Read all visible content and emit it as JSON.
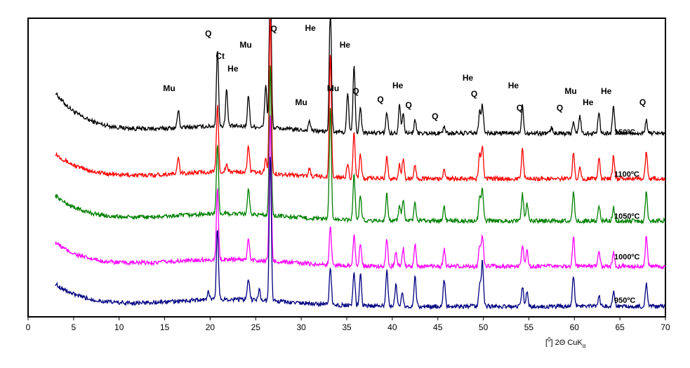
{
  "chart_data": {
    "type": "line",
    "title": "",
    "xlabel": "[°] 2Θ CuKα",
    "xlabel_parts": {
      "prefix": "[",
      "degree": "0",
      "middle": "] 2Θ CuK",
      "sub": "α"
    },
    "ylabel": "",
    "xlim": [
      0,
      70
    ],
    "x_ticks": [
      0,
      5,
      10,
      15,
      20,
      25,
      30,
      35,
      40,
      45,
      50,
      55,
      60,
      65,
      70
    ],
    "grid": false,
    "y_axis_ticks": false,
    "series": [
      {
        "name": "150ºC",
        "color": "#000000",
        "baseline": 58,
        "amplitude": 200,
        "peaks": [
          [
            16.5,
            25
          ],
          [
            20.8,
            110
          ],
          [
            21.8,
            52
          ],
          [
            24.2,
            45
          ],
          [
            26.1,
            62
          ],
          [
            26.6,
            240
          ],
          [
            30.9,
            14
          ],
          [
            33.2,
            190
          ],
          [
            35.1,
            55
          ],
          [
            35.8,
            95
          ],
          [
            36.5,
            35
          ],
          [
            39.4,
            30
          ],
          [
            40.8,
            42
          ],
          [
            41.2,
            28
          ],
          [
            42.5,
            18
          ],
          [
            45.7,
            10
          ],
          [
            49.6,
            30
          ],
          [
            49.9,
            40
          ],
          [
            54.3,
            40
          ],
          [
            57.5,
            8
          ],
          [
            59.9,
            16
          ],
          [
            60.6,
            25
          ],
          [
            62.7,
            30
          ],
          [
            64.3,
            38
          ],
          [
            67.9,
            18
          ]
        ]
      },
      {
        "name": "1100ºC",
        "color": "#ff0000",
        "baseline": 36,
        "amplitude": 180,
        "peaks": [
          [
            16.5,
            22
          ],
          [
            20.8,
            95
          ],
          [
            21.8,
            10
          ],
          [
            24.2,
            40
          ],
          [
            26.1,
            20
          ],
          [
            26.6,
            230
          ],
          [
            30.9,
            10
          ],
          [
            33.2,
            180
          ],
          [
            35.1,
            20
          ],
          [
            35.8,
            65
          ],
          [
            36.5,
            35
          ],
          [
            39.4,
            32
          ],
          [
            40.8,
            20
          ],
          [
            41.2,
            28
          ],
          [
            42.5,
            20
          ],
          [
            45.7,
            12
          ],
          [
            49.6,
            35
          ],
          [
            49.9,
            45
          ],
          [
            54.3,
            42
          ],
          [
            59.9,
            38
          ],
          [
            60.6,
            18
          ],
          [
            62.7,
            30
          ],
          [
            64.3,
            32
          ],
          [
            67.9,
            40
          ]
        ]
      },
      {
        "name": "1050ºC",
        "color": "#008000",
        "baseline": 36,
        "amplitude": 180,
        "peaks": [
          [
            20.8,
            100
          ],
          [
            24.2,
            35
          ],
          [
            26.6,
            220
          ],
          [
            33.2,
            160
          ],
          [
            35.8,
            65
          ],
          [
            36.5,
            35
          ],
          [
            39.4,
            38
          ],
          [
            40.8,
            22
          ],
          [
            41.2,
            28
          ],
          [
            42.5,
            25
          ],
          [
            45.7,
            20
          ],
          [
            49.6,
            35
          ],
          [
            49.9,
            45
          ],
          [
            54.3,
            38
          ],
          [
            54.8,
            25
          ],
          [
            59.9,
            40
          ],
          [
            62.7,
            22
          ],
          [
            64.3,
            20
          ],
          [
            67.9,
            42
          ]
        ]
      },
      {
        "name": "1000ºC",
        "color": "#ff00ff",
        "baseline": 34,
        "amplitude": 170,
        "peaks": [
          [
            20.8,
            100
          ],
          [
            24.2,
            30
          ],
          [
            26.6,
            210
          ],
          [
            33.2,
            55
          ],
          [
            35.8,
            45
          ],
          [
            36.5,
            30
          ],
          [
            39.4,
            38
          ],
          [
            40.4,
            20
          ],
          [
            41.2,
            25
          ],
          [
            42.5,
            32
          ],
          [
            45.7,
            24
          ],
          [
            49.6,
            30
          ],
          [
            49.9,
            45
          ],
          [
            54.3,
            32
          ],
          [
            54.8,
            22
          ],
          [
            59.9,
            42
          ],
          [
            62.7,
            22
          ],
          [
            64.3,
            20
          ],
          [
            67.9,
            42
          ]
        ]
      },
      {
        "name": "950ºC",
        "color": "#000080",
        "baseline": 32,
        "amplitude": 170,
        "peaks": [
          [
            19.8,
            12
          ],
          [
            20.8,
            100
          ],
          [
            24.2,
            30
          ],
          [
            25.4,
            15
          ],
          [
            26.6,
            210
          ],
          [
            33.2,
            55
          ],
          [
            35.8,
            48
          ],
          [
            36.5,
            45
          ],
          [
            39.4,
            52
          ],
          [
            40.4,
            32
          ],
          [
            41.1,
            20
          ],
          [
            42.5,
            42
          ],
          [
            45.7,
            38
          ],
          [
            49.6,
            30
          ],
          [
            49.9,
            65
          ],
          [
            54.3,
            28
          ],
          [
            54.8,
            22
          ],
          [
            59.9,
            45
          ],
          [
            62.7,
            15
          ],
          [
            64.3,
            20
          ],
          [
            67.9,
            32
          ]
        ]
      }
    ],
    "annotations": [
      {
        "text": "Q",
        "x": 19.8
      },
      {
        "text": "Ct",
        "x": 21.1
      },
      {
        "text": "Mu",
        "x": 23.9
      },
      {
        "text": "He",
        "x": 22.5
      },
      {
        "text": "Mu",
        "x": 15.5
      },
      {
        "text": "Q",
        "x": 27.0
      },
      {
        "text": "He",
        "x": 31.0
      },
      {
        "text": "He",
        "x": 34.8
      },
      {
        "text": "Mu",
        "x": 30.0
      },
      {
        "text": "Mu",
        "x": 33.5
      },
      {
        "text": "Q",
        "x": 36.0
      },
      {
        "text": "Q",
        "x": 38.7
      },
      {
        "text": "He",
        "x": 40.6
      },
      {
        "text": "Q",
        "x": 41.8
      },
      {
        "text": "Q",
        "x": 44.7
      },
      {
        "text": "He",
        "x": 48.3
      },
      {
        "text": "Q",
        "x": 49.0
      },
      {
        "text": "He",
        "x": 53.3
      },
      {
        "text": "Q",
        "x": 54.0
      },
      {
        "text": "Q",
        "x": 58.4
      },
      {
        "text": "Mu",
        "x": 59.6
      },
      {
        "text": "He",
        "x": 61.5
      },
      {
        "text": "He",
        "x": 63.5
      },
      {
        "text": "Q",
        "x": 67.5
      }
    ]
  }
}
